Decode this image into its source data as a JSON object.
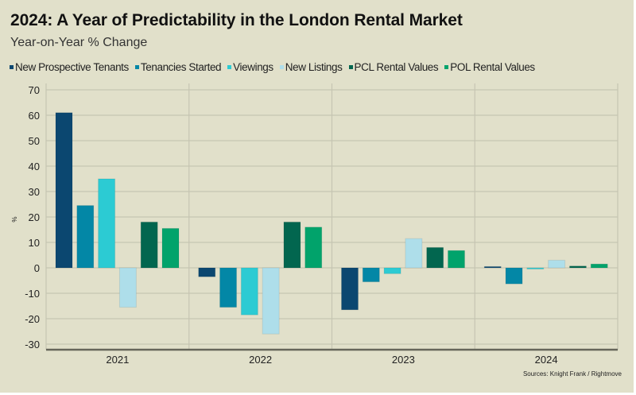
{
  "title": "2024: A Year of Predictability in the London Rental Market",
  "subtitle": "Year-on-Year % Change",
  "source": "Sources: Knight Frank / Rightmove",
  "chart_data": {
    "type": "bar",
    "title": "2024: A Year of Predictability in the London Rental Market",
    "subtitle": "Year-on-Year % Change",
    "xlabel": "",
    "ylabel": "%",
    "ylim": [
      -30,
      70
    ],
    "yticks": [
      70,
      60,
      50,
      40,
      30,
      20,
      10,
      0,
      -10,
      -20,
      -30
    ],
    "grid": true,
    "legend_position": "top",
    "categories": [
      "2021",
      "2022",
      "2023",
      "2024"
    ],
    "series": [
      {
        "name": "New Prospective Tenants",
        "color": "#0b4770",
        "values": [
          61,
          -3.5,
          -16.5,
          0.5
        ]
      },
      {
        "name": "Tenancies Started",
        "color": "#0387a6",
        "values": [
          24.5,
          -15.5,
          -5.5,
          -6.3
        ]
      },
      {
        "name": "Viewings",
        "color": "#2ccbd3",
        "values": [
          35,
          -18.5,
          -2.3,
          -0.3
        ]
      },
      {
        "name": "New Listings",
        "color": "#aedeea",
        "values": [
          -15.5,
          -26,
          11.5,
          3
        ]
      },
      {
        "name": "PCL Rental Values",
        "color": "#02664f",
        "values": [
          18,
          18,
          8,
          0.7
        ]
      },
      {
        "name": "POL Rental Values",
        "color": "#01a36b",
        "values": [
          15.5,
          16,
          6.8,
          1.5
        ]
      }
    ]
  }
}
